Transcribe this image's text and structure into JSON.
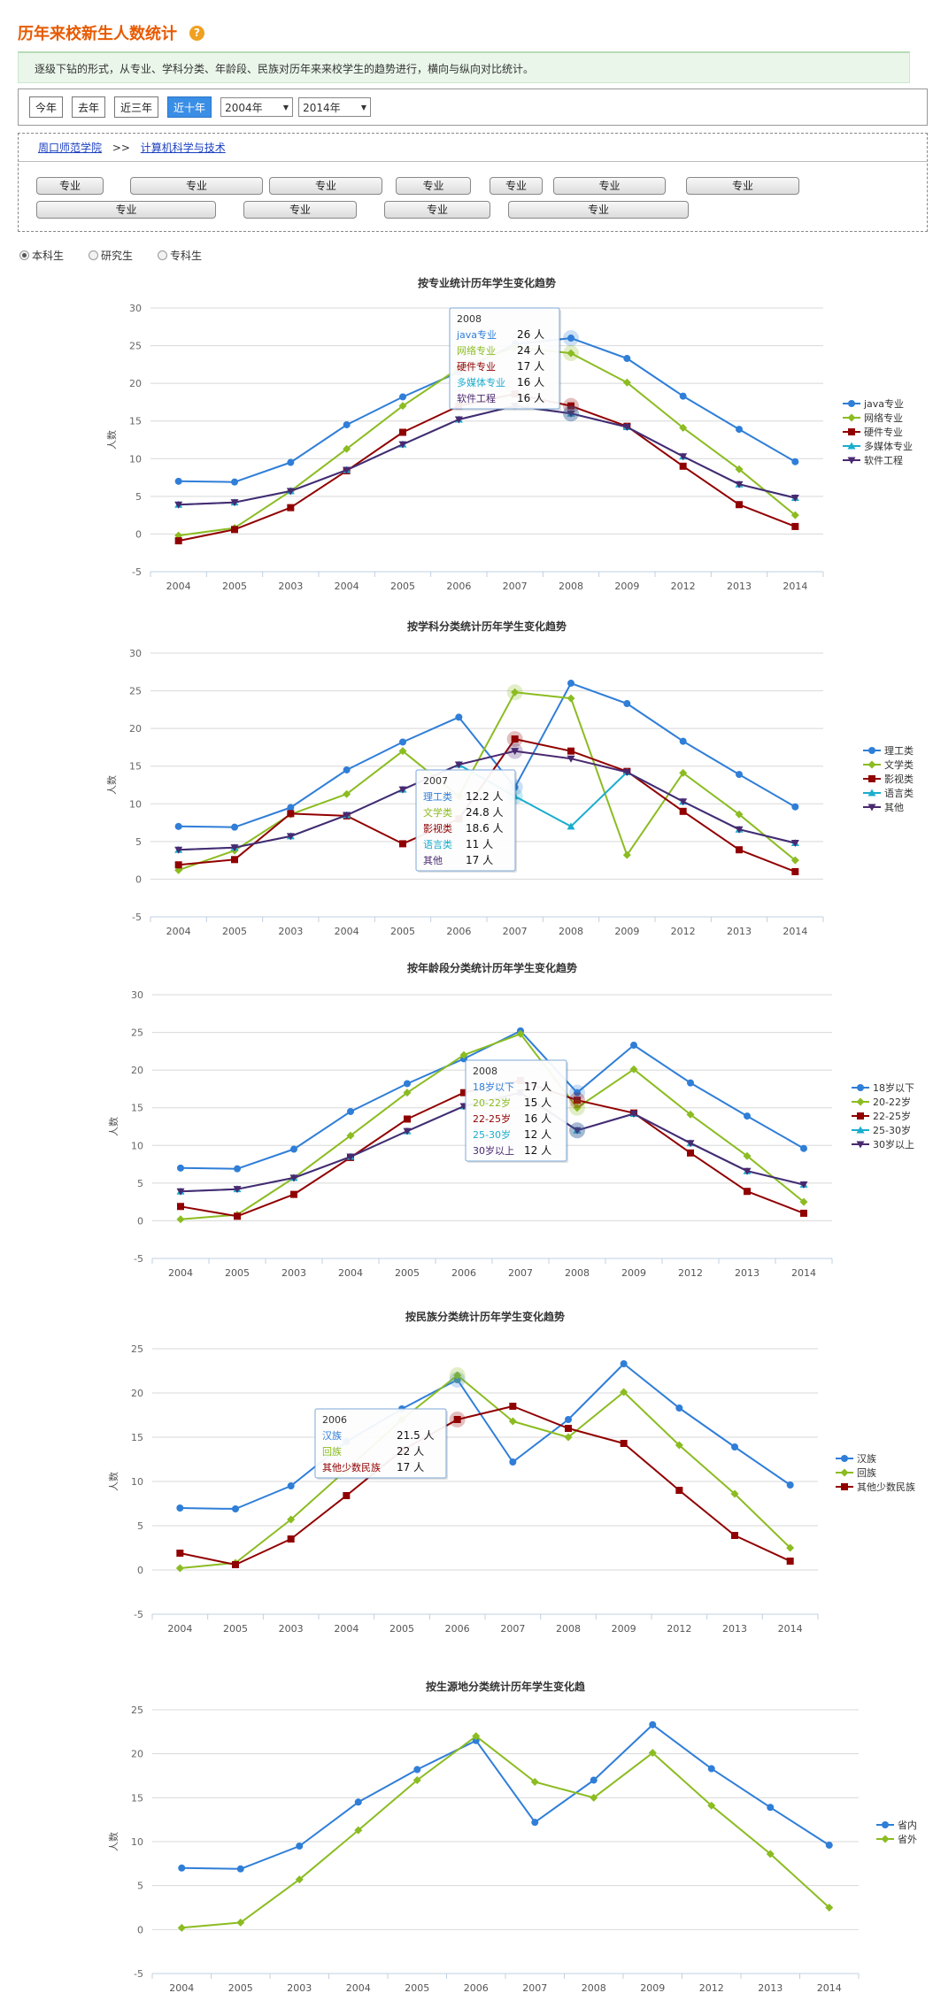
{
  "header": {
    "title": "历年来校新生人数统计",
    "help_glyph": "?"
  },
  "description": "逐级下钻的形式，从专业、学科分类、年龄段、民族对历年来来校学生的趋势进行，横向与纵向对比统计。",
  "filters": {
    "buttons": [
      {
        "label": "今年",
        "active": false
      },
      {
        "label": "去年",
        "active": false
      },
      {
        "label": "近三年",
        "active": false
      },
      {
        "label": "近十年",
        "active": true
      }
    ],
    "from_year": "2004年",
    "to_year": "2014年"
  },
  "breadcrumb": {
    "root": "周口师范学院",
    "separator": ">>",
    "current": "计算机科学与技术"
  },
  "majors_row1": [
    "专业",
    "专业",
    "专业",
    "专业",
    "专业",
    "专业",
    "专业"
  ],
  "majors_row2": [
    "专业",
    "专业",
    "专业",
    "专业"
  ],
  "student_types": [
    {
      "label": "本科生",
      "checked": true
    },
    {
      "label": "研究生",
      "checked": false
    },
    {
      "label": "专科生",
      "checked": false
    }
  ],
  "chart_data": [
    {
      "type": "line",
      "title": "按专业统计历年学生变化趋势",
      "ylabel": "人数",
      "ylim": [
        -5,
        30
      ],
      "yticks": [
        30,
        25,
        20,
        15,
        10,
        5,
        0,
        -5
      ],
      "categories": [
        "2004",
        "2005",
        "2003",
        "2004",
        "2005",
        "2006",
        "2007",
        "2008",
        "2009",
        "2012",
        "2013",
        "2014"
      ],
      "legend_position": "right",
      "series": [
        {
          "name": "java专业",
          "color": "#2f7ed8",
          "marker": "circle",
          "values": [
            7,
            6.9,
            9.5,
            14.5,
            18.2,
            21.5,
            25.2,
            26,
            23.3,
            18.3,
            13.9,
            9.6
          ]
        },
        {
          "name": "网络专业",
          "color": "#8bbc21",
          "marker": "diamond",
          "values": [
            -0.2,
            0.8,
            5.7,
            11.3,
            17,
            22,
            24.8,
            24,
            20.1,
            14.1,
            8.6,
            2.5
          ]
        },
        {
          "name": "硬件专业",
          "color": "#910000",
          "marker": "square",
          "values": [
            -0.9,
            0.6,
            3.5,
            8.4,
            13.5,
            17,
            18.6,
            17,
            14.3,
            9,
            3.9,
            1
          ]
        },
        {
          "name": "多媒体专业",
          "color": "#1aadce",
          "marker": "triangle",
          "values": [
            3.9,
            4.2,
            5.7,
            8.5,
            11.9,
            15.2,
            17,
            16,
            14.2,
            10.3,
            6.6,
            4.8
          ]
        },
        {
          "name": "软件工程",
          "color": "#492970",
          "marker": "triangle-down",
          "values": [
            3.9,
            4.2,
            5.7,
            8.5,
            11.9,
            15.2,
            17,
            16,
            14.2,
            10.3,
            6.6,
            4.8
          ]
        }
      ],
      "tooltip": {
        "header": "2008",
        "rows": [
          {
            "name": "java专业",
            "value": "26 人"
          },
          {
            "name": "网络专业",
            "value": "24 人"
          },
          {
            "name": "硬件专业",
            "value": "17 人"
          },
          {
            "name": "多媒体专业",
            "value": "16 人"
          },
          {
            "name": "软件工程",
            "value": "16 人"
          }
        ]
      }
    },
    {
      "type": "line",
      "title": "按学科分类统计历年学生变化趋势",
      "ylabel": "人数",
      "ylim": [
        -5,
        30
      ],
      "yticks": [
        30,
        25,
        20,
        15,
        10,
        5,
        0,
        -5
      ],
      "categories": [
        "2004",
        "2005",
        "2003",
        "2004",
        "2005",
        "2006",
        "2007",
        "2008",
        "2009",
        "2012",
        "2013",
        "2014"
      ],
      "legend_position": "right",
      "series": [
        {
          "name": "理工类",
          "color": "#2f7ed8",
          "marker": "circle",
          "values": [
            7,
            6.9,
            9.5,
            14.5,
            18.2,
            21.5,
            12.2,
            26,
            23.3,
            18.3,
            13.9,
            9.6
          ]
        },
        {
          "name": "文学类",
          "color": "#8bbc21",
          "marker": "diamond",
          "values": [
            1.2,
            3.8,
            8.6,
            11.3,
            17,
            11,
            24.8,
            24,
            3.2,
            14.1,
            8.6,
            2.5
          ]
        },
        {
          "name": "影视类",
          "color": "#910000",
          "marker": "square",
          "values": [
            1.9,
            2.6,
            8.7,
            8.4,
            4.7,
            8,
            18.6,
            17,
            14.3,
            9,
            3.9,
            1
          ]
        },
        {
          "name": "语言类",
          "color": "#1aadce",
          "marker": "triangle",
          "values": [
            3.9,
            4.2,
            5.7,
            8.5,
            11.9,
            15.2,
            11,
            7,
            14.2,
            10.3,
            6.6,
            4.8
          ]
        },
        {
          "name": "其他",
          "color": "#492970",
          "marker": "triangle-down",
          "values": [
            3.9,
            4.2,
            5.7,
            8.5,
            11.9,
            15.2,
            17,
            16,
            14.2,
            10.3,
            6.6,
            4.8
          ]
        }
      ],
      "tooltip": {
        "header": "2007",
        "rows": [
          {
            "name": "理工类",
            "value": "12.2 人"
          },
          {
            "name": "文学类",
            "value": "24.8 人"
          },
          {
            "name": "影视类",
            "value": "18.6 人"
          },
          {
            "name": "语言类",
            "value": "11 人"
          },
          {
            "name": "其他",
            "value": "17 人"
          }
        ]
      }
    },
    {
      "type": "line",
      "title": "按年龄段分类统计历年学生变化趋势",
      "ylabel": "人数",
      "ylim": [
        -5,
        30
      ],
      "yticks": [
        30,
        25,
        20,
        15,
        10,
        5,
        0,
        -5
      ],
      "categories": [
        "2004",
        "2005",
        "2003",
        "2004",
        "2005",
        "2006",
        "2007",
        "2008",
        "2009",
        "2012",
        "2013",
        "2014"
      ],
      "legend_position": "right",
      "series": [
        {
          "name": "18岁以下",
          "color": "#2f7ed8",
          "marker": "circle",
          "values": [
            7,
            6.9,
            9.5,
            14.5,
            18.2,
            21.5,
            25.2,
            17,
            23.3,
            18.3,
            13.9,
            9.6
          ]
        },
        {
          "name": "20-22岁",
          "color": "#8bbc21",
          "marker": "diamond",
          "values": [
            0.2,
            0.8,
            5.7,
            11.3,
            17,
            22,
            24.8,
            15,
            20.1,
            14.1,
            8.6,
            2.5
          ]
        },
        {
          "name": "22-25岁",
          "color": "#910000",
          "marker": "square",
          "values": [
            1.9,
            0.6,
            3.5,
            8.4,
            13.5,
            17,
            18.6,
            16,
            14.3,
            9,
            3.9,
            1
          ]
        },
        {
          "name": "25-30岁",
          "color": "#1aadce",
          "marker": "triangle",
          "values": [
            3.9,
            4.2,
            5.7,
            8.5,
            11.9,
            15.2,
            17,
            12,
            14.2,
            10.3,
            6.6,
            4.8
          ]
        },
        {
          "name": "30岁以上",
          "color": "#492970",
          "marker": "triangle-down",
          "values": [
            3.9,
            4.2,
            5.7,
            8.5,
            11.9,
            15.2,
            17,
            12,
            14.2,
            10.3,
            6.6,
            4.8
          ]
        }
      ],
      "tooltip": {
        "header": "2008",
        "rows": [
          {
            "name": "18岁以下",
            "value": "17 人"
          },
          {
            "name": "20-22岁",
            "value": "15 人"
          },
          {
            "name": "22-25岁",
            "value": "16 人"
          },
          {
            "name": "25-30岁",
            "value": "12 人"
          },
          {
            "name": "30岁以上",
            "value": "12 人"
          }
        ]
      }
    },
    {
      "type": "line",
      "title": "按民族分类统计历年学生变化趋势",
      "ylabel": "人数",
      "ylim": [
        -5,
        25
      ],
      "yticks": [
        25,
        20,
        15,
        10,
        5,
        0,
        -5
      ],
      "categories": [
        "2004",
        "2005",
        "2003",
        "2004",
        "2005",
        "2006",
        "2007",
        "2008",
        "2009",
        "2012",
        "2013",
        "2014"
      ],
      "legend_position": "right",
      "series": [
        {
          "name": "汉族",
          "color": "#2f7ed8",
          "marker": "circle",
          "values": [
            7,
            6.9,
            9.5,
            14.5,
            18.2,
            21.5,
            12.2,
            17,
            23.3,
            18.3,
            13.9,
            9.6
          ]
        },
        {
          "name": "回族",
          "color": "#8bbc21",
          "marker": "diamond",
          "values": [
            0.2,
            0.8,
            5.7,
            11.3,
            17,
            22,
            16.8,
            15,
            20.1,
            14.1,
            8.6,
            2.5
          ]
        },
        {
          "name": "其他少数民族",
          "color": "#910000",
          "marker": "square",
          "values": [
            1.9,
            0.6,
            3.5,
            8.4,
            13.5,
            17,
            18.5,
            16,
            14.3,
            9,
            3.9,
            1
          ]
        }
      ],
      "tooltip": {
        "header": "2006",
        "rows": [
          {
            "name": "汉族",
            "value": "21.5 人"
          },
          {
            "name": "回族",
            "value": "22 人"
          },
          {
            "name": "其他少数民族",
            "value": "17 人"
          }
        ]
      }
    },
    {
      "type": "line",
      "title": "按生源地分类统计历年学生变化趋",
      "ylabel": "人数",
      "ylim": [
        -5,
        25
      ],
      "yticks": [
        25,
        20,
        15,
        10,
        5,
        0,
        -5
      ],
      "categories": [
        "2004",
        "2005",
        "2003",
        "2004",
        "2005",
        "2006",
        "2007",
        "2008",
        "2009",
        "2012",
        "2013",
        "2014"
      ],
      "legend_position": "right",
      "series": [
        {
          "name": "省内",
          "color": "#2f7ed8",
          "marker": "circle",
          "values": [
            7,
            6.9,
            9.5,
            14.5,
            18.2,
            21.5,
            12.2,
            17,
            23.3,
            18.3,
            13.9,
            9.6
          ]
        },
        {
          "name": "省外",
          "color": "#8bbc21",
          "marker": "diamond",
          "values": [
            0.2,
            0.8,
            5.7,
            11.3,
            17,
            22,
            16.8,
            15,
            20.1,
            14.1,
            8.6,
            2.5
          ]
        }
      ]
    }
  ]
}
